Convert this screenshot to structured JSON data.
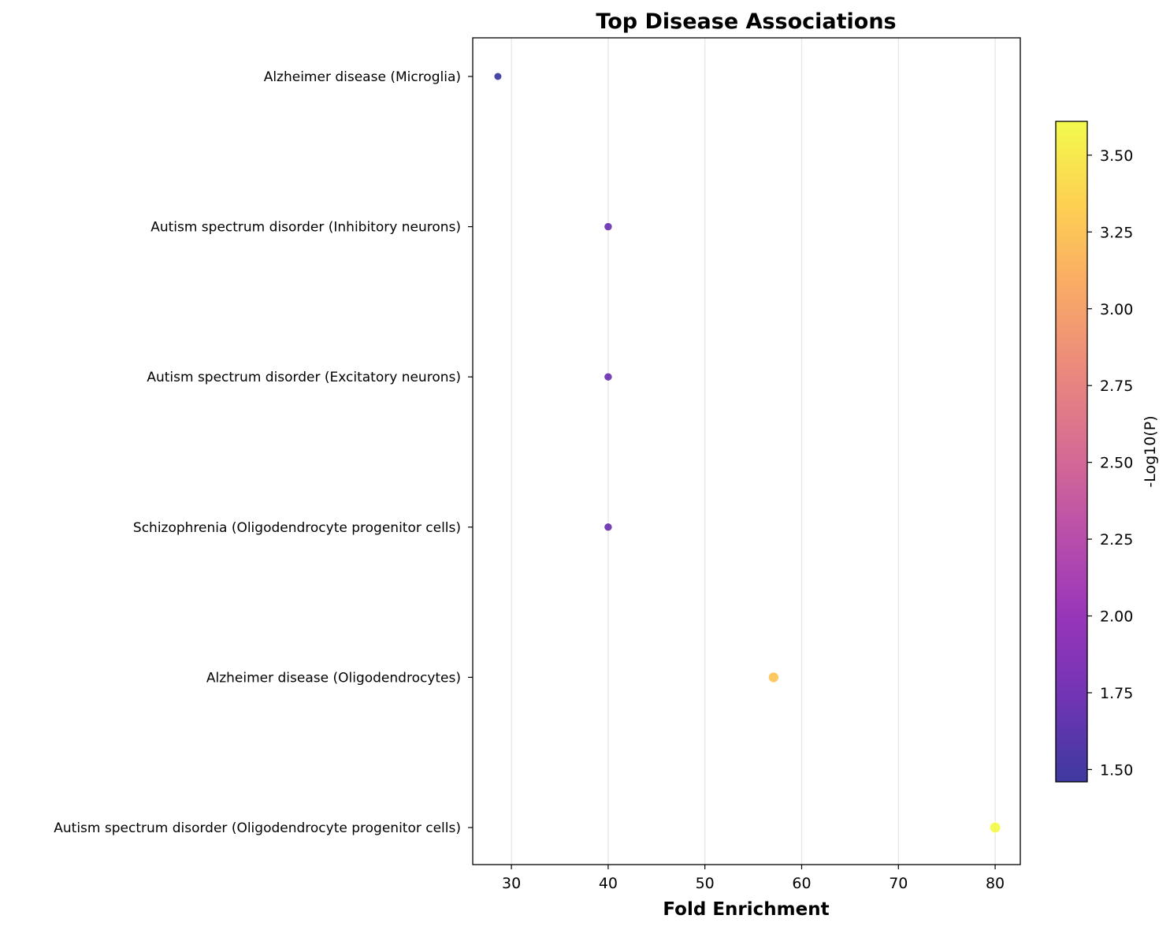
{
  "chart_data": {
    "type": "scatter",
    "title": "Top Disease Associations",
    "xlabel": "Fold Enrichment",
    "ylabel": "",
    "xlim": [
      26,
      82.6
    ],
    "xticks": [
      30,
      40,
      50,
      60,
      70,
      80
    ],
    "grid": "x-only",
    "colormap": "plasma",
    "colorbar": {
      "label": "-Log10(P)",
      "range": [
        1.46,
        3.61
      ],
      "ticks": [
        "1.50",
        "1.75",
        "2.00",
        "2.25",
        "2.50",
        "2.75",
        "3.00",
        "3.25",
        "3.50"
      ],
      "placement": "right"
    },
    "categories": [
      "Alzheimer disease (Microglia)",
      "Autism spectrum disorder (Inhibitory neurons)",
      "Autism spectrum disorder (Excitatory neurons)",
      "Schizophrenia (Oligodendrocyte progenitor cells)",
      "Alzheimer disease (Oligodendrocytes)",
      "Autism spectrum disorder (Oligodendrocyte progenitor cells)"
    ],
    "points": [
      {
        "category": "Alzheimer disease (Microglia)",
        "x": 28.6,
        "neglog10p": 1.46
      },
      {
        "category": "Autism spectrum disorder (Inhibitory neurons)",
        "x": 40.0,
        "neglog10p": 1.72
      },
      {
        "category": "Autism spectrum disorder (Excitatory neurons)",
        "x": 40.0,
        "neglog10p": 1.72
      },
      {
        "category": "Schizophrenia (Oligodendrocyte progenitor cells)",
        "x": 40.0,
        "neglog10p": 1.72
      },
      {
        "category": "Alzheimer disease (Oligodendrocytes)",
        "x": 57.1,
        "neglog10p": 3.25
      },
      {
        "category": "Autism spectrum disorder (Oligodendrocyte progenitor cells)",
        "x": 80.0,
        "neglog10p": 3.61
      }
    ]
  }
}
